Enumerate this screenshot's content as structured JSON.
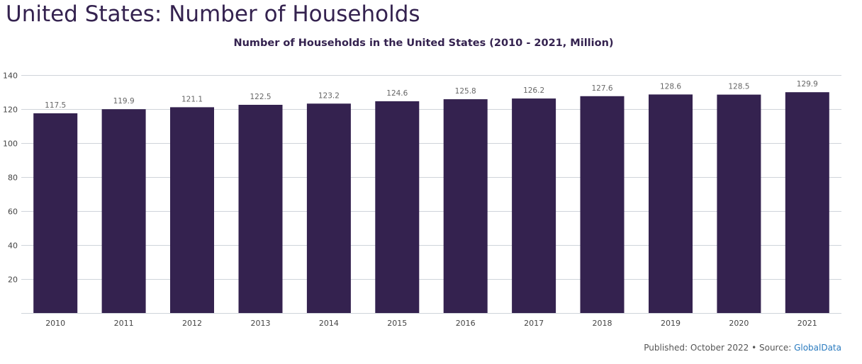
{
  "page": {
    "heading": "United States: Number of Households"
  },
  "footer": {
    "published_text": "Published: October 2022 • Source: ",
    "source_label": "GlobalData"
  },
  "colors": {
    "bar": "#34224f",
    "heading": "#34224f",
    "gridline": "#cfd4da",
    "axis_text": "#444444",
    "data_label": "#666666",
    "link": "#2a7bbf"
  },
  "chart_data": {
    "type": "bar",
    "title": "Number of Households in the United States (2010 - 2021, Million)",
    "xlabel": "",
    "ylabel": "",
    "categories": [
      "2010",
      "2011",
      "2012",
      "2013",
      "2014",
      "2015",
      "2016",
      "2017",
      "2018",
      "2019",
      "2020",
      "2021"
    ],
    "values": [
      117.5,
      119.9,
      121.1,
      122.5,
      123.2,
      124.6,
      125.8,
      126.2,
      127.6,
      128.6,
      128.5,
      129.9
    ],
    "data_labels": [
      "117.5",
      "119.9",
      "121.1",
      "122.5",
      "123.2",
      "124.6",
      "125.8",
      "126.2",
      "127.6",
      "128.6",
      "128.5",
      "129.9"
    ],
    "y_ticks": [
      20,
      40,
      60,
      80,
      100,
      120,
      140
    ],
    "ylim": [
      0,
      140
    ],
    "grid": true,
    "legend": "none"
  }
}
